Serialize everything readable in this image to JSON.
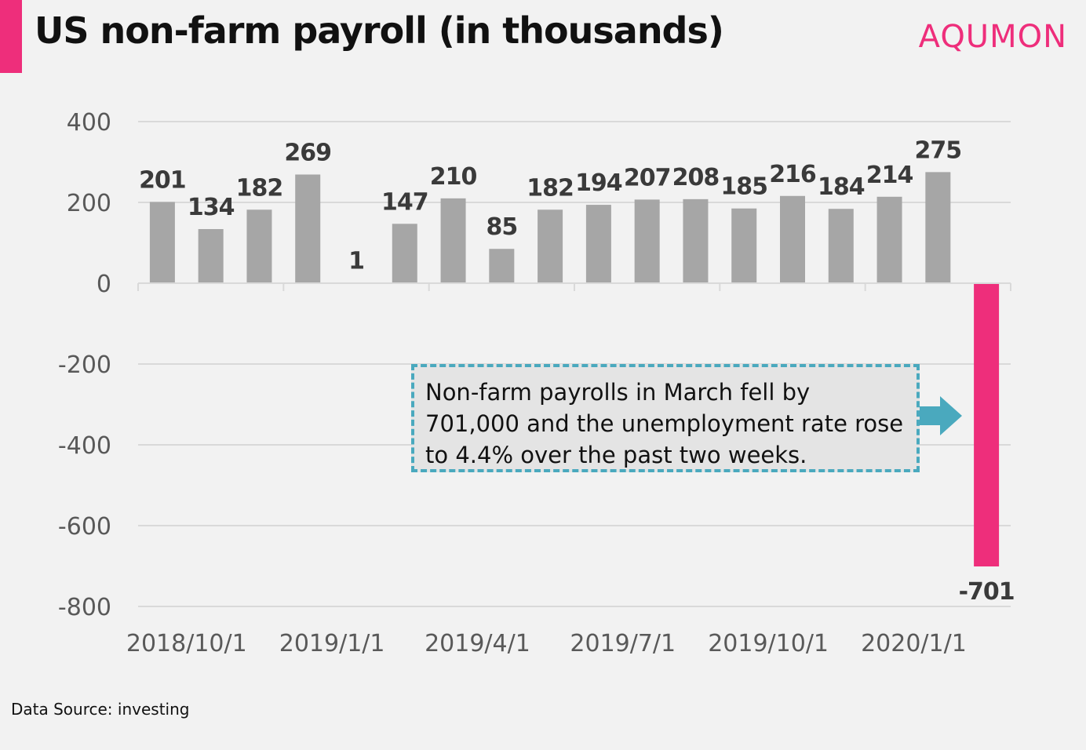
{
  "title": "US non-farm payroll (in thousands)",
  "brand": "AQUMON",
  "source": "Data Source: investing",
  "annotation": "Non-farm payrolls in March fell by 701,000 and the unemployment rate rose to 4.4% over the past two weeks.",
  "colors": {
    "bar": "#a6a6a6",
    "highlight": "#ee2e7b",
    "annotation_border": "#4aa9be",
    "grid": "#d9d9d9"
  },
  "chart_data": {
    "type": "bar",
    "title": "US non-farm payroll (in thousands)",
    "xlabel": "",
    "ylabel": "",
    "ylim": [
      -800,
      400
    ],
    "yticks": [
      400,
      200,
      0,
      -200,
      -400,
      -600,
      -800
    ],
    "xtick_labels": [
      "2018/10/1",
      "2019/1/1",
      "2019/4/1",
      "2019/7/1",
      "2019/10/1",
      "2020/1/1"
    ],
    "xtick_label_categories": [
      0.5,
      3.5,
      6.5,
      9.5,
      12.5,
      15.5
    ],
    "grid": true,
    "categories": [
      "2018/10/1",
      "2018/11/1",
      "2018/12/1",
      "2019/1/1",
      "2019/2/1",
      "2019/3/1",
      "2019/4/1",
      "2019/5/1",
      "2019/6/1",
      "2019/7/1",
      "2019/8/1",
      "2019/9/1",
      "2019/10/1",
      "2019/11/1",
      "2019/12/1",
      "2020/1/1",
      "2020/2/1",
      "2020/3/1"
    ],
    "values": [
      201,
      134,
      182,
      269,
      1,
      147,
      210,
      85,
      182,
      194,
      207,
      208,
      185,
      216,
      184,
      214,
      275,
      -701
    ],
    "highlight_index": 17
  }
}
